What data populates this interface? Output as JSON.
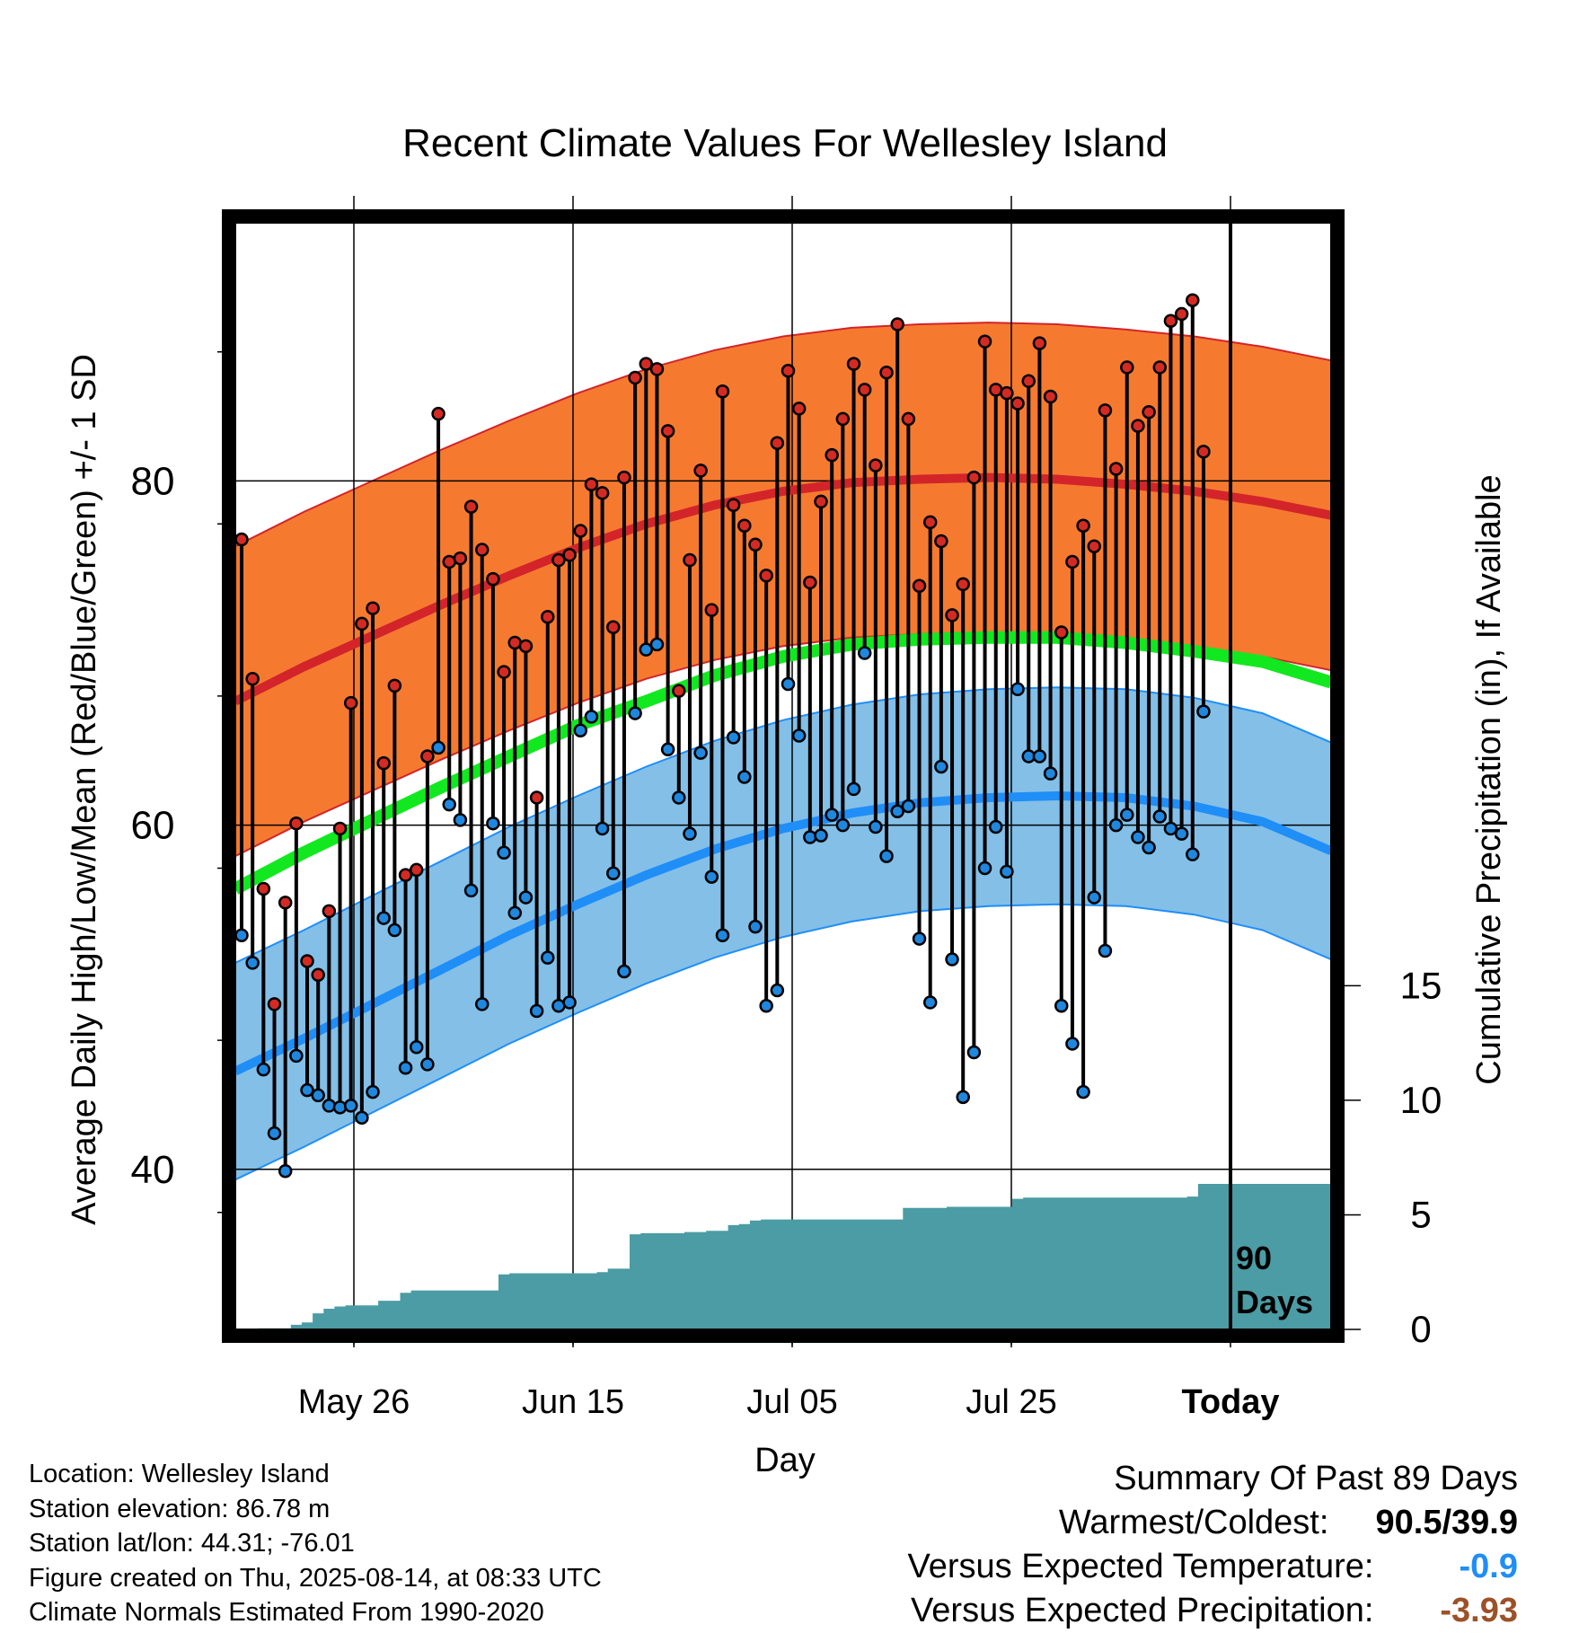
{
  "chart_data": {
    "type": "line",
    "title": "Recent Climate Values For Wellesley Island",
    "xlabel": "Day",
    "ylabel": "Average Daily High/Low/Mean (Red/Blue/Green) +/- 1 SD",
    "y2label": "Cumulative Precipitation (in), If Available",
    "x_tick_labels": [
      "May 26",
      "Jun 15",
      "Jul 05",
      "Jul 25",
      "Today"
    ],
    "y_ticks": [
      40,
      60,
      80
    ],
    "y2_ticks": [
      0,
      5,
      10,
      15
    ],
    "today_marker": {
      "line1": "90",
      "line2": "Days"
    },
    "high_normal": [
      67.2,
      69.2,
      71.0,
      72.8,
      74.5,
      76.1,
      77.5,
      78.6,
      79.4,
      79.9,
      80.1,
      80.2,
      80.1,
      79.8,
      79.4,
      78.8,
      78.0
    ],
    "high_sd": 9.0,
    "low_normal": [
      45.7,
      47.6,
      49.6,
      51.6,
      53.6,
      55.4,
      57.1,
      58.6,
      59.8,
      60.7,
      61.3,
      61.6,
      61.7,
      61.6,
      61.1,
      60.2,
      58.5
    ],
    "low_sd": 6.3,
    "mean_normal": [
      56.3,
      58.4,
      60.3,
      62.2,
      64.0,
      65.8,
      67.2,
      68.7,
      69.8,
      70.5,
      70.8,
      70.9,
      70.9,
      70.6,
      70.1,
      69.5,
      68.3
    ],
    "daily_high": [
      76.6,
      68.5,
      56.3,
      49.6,
      55.5,
      60.1,
      52.1,
      51.3,
      55.0,
      59.8,
      67.1,
      71.7,
      72.6,
      63.6,
      68.1,
      57.1,
      57.4,
      64.0,
      83.9,
      75.3,
      75.5,
      78.5,
      76.0,
      74.3,
      68.9,
      70.6,
      70.4,
      61.6,
      72.1,
      75.4,
      75.7,
      77.1,
      79.8,
      79.3,
      71.5,
      80.2,
      86.0,
      86.8,
      86.5,
      82.9,
      67.8,
      75.4,
      80.6,
      72.5,
      85.2,
      78.6,
      77.4,
      76.3,
      74.5,
      82.2,
      86.4,
      84.2,
      74.1,
      78.8,
      81.5,
      83.6,
      86.8,
      85.3,
      80.9,
      86.3,
      89.1,
      83.6,
      73.9,
      77.6,
      76.5,
      72.2,
      74.0,
      80.2,
      88.1,
      85.3,
      85.1,
      84.5,
      85.8,
      88.0,
      84.9,
      71.2,
      75.3,
      77.4,
      76.2,
      84.1,
      80.7,
      86.6,
      83.2,
      84.0,
      86.6,
      89.3,
      89.7,
      90.5,
      81.7
    ],
    "daily_low": [
      53.6,
      52.0,
      45.8,
      42.1,
      39.9,
      46.6,
      44.6,
      44.3,
      43.7,
      43.6,
      43.7,
      43.0,
      44.5,
      54.6,
      53.9,
      45.9,
      47.1,
      46.1,
      64.5,
      61.2,
      60.3,
      56.2,
      49.6,
      60.1,
      58.4,
      54.9,
      55.8,
      49.2,
      52.3,
      49.5,
      49.7,
      65.5,
      66.3,
      59.8,
      57.2,
      51.5,
      66.5,
      70.2,
      70.5,
      64.4,
      61.6,
      59.5,
      64.2,
      57.0,
      53.6,
      65.1,
      62.8,
      54.1,
      49.5,
      50.4,
      68.2,
      65.2,
      59.3,
      59.4,
      60.6,
      60.0,
      62.1,
      70.0,
      59.9,
      58.2,
      60.8,
      61.1,
      53.4,
      49.7,
      63.4,
      52.2,
      44.2,
      46.8,
      57.5,
      59.9,
      57.3,
      67.9,
      64.0,
      64.0,
      63.0,
      49.5,
      47.3,
      44.5,
      55.8,
      52.7,
      60.0,
      60.6,
      59.3,
      58.7,
      60.5,
      59.8,
      59.5,
      58.3,
      66.6
    ],
    "cumulative_precip": [
      0.0,
      0.0,
      0.05,
      0.05,
      0.05,
      0.2,
      0.3,
      0.7,
      0.9,
      1.0,
      1.05,
      1.05,
      1.05,
      1.25,
      1.25,
      1.6,
      1.7,
      1.7,
      1.7,
      1.7,
      1.7,
      1.7,
      1.7,
      1.7,
      2.4,
      2.45,
      2.45,
      2.45,
      2.45,
      2.45,
      2.45,
      2.45,
      2.45,
      2.5,
      2.65,
      2.65,
      4.15,
      4.2,
      4.2,
      4.2,
      4.2,
      4.25,
      4.25,
      4.3,
      4.3,
      4.55,
      4.6,
      4.75,
      4.8,
      4.8,
      4.8,
      4.8,
      4.8,
      4.8,
      4.8,
      4.8,
      4.8,
      4.8,
      4.8,
      4.8,
      4.8,
      5.3,
      5.3,
      5.3,
      5.3,
      5.35,
      5.35,
      5.35,
      5.35,
      5.35,
      5.35,
      5.7,
      5.75,
      5.75,
      5.75,
      5.75,
      5.75,
      5.75,
      5.75,
      5.75,
      5.75,
      5.75,
      5.75,
      5.75,
      5.75,
      5.75,
      5.75,
      5.8,
      6.35,
      6.35
    ],
    "y_range": [
      30.7,
      95.0
    ],
    "y2_range": [
      0,
      48.3
    ],
    "colors": {
      "high_band": "#f57a30",
      "high_line": "#d3242a",
      "low_band": "#83bfe7",
      "low_line": "#1f8ef7",
      "mean_line": "#12e81f",
      "precip": "#4b9ca4",
      "high_dot": "#d42a24",
      "low_dot": "#1f87de",
      "negative_temp": "#1f8ef7",
      "negative_precip": "#9c5128"
    }
  },
  "footer": {
    "location": "Location: Wellesley Island",
    "elevation": "Station elevation: 86.78 m",
    "latlon": "Station lat/lon: 44.31; -76.01",
    "created": "Figure created on Thu, 2025-08-14, at 08:33 UTC",
    "normals": "Climate Normals Estimated From 1990-2020"
  },
  "summary": {
    "heading": "Summary Of Past 89 Days",
    "warmest_coldest_label": "Warmest/Coldest:",
    "warmest_coldest_value": "90.5/39.9",
    "temp_label": "Versus Expected Temperature:",
    "temp_value": "-0.9",
    "precip_label": "Versus Expected Precipitation:",
    "precip_value": "-3.93"
  }
}
